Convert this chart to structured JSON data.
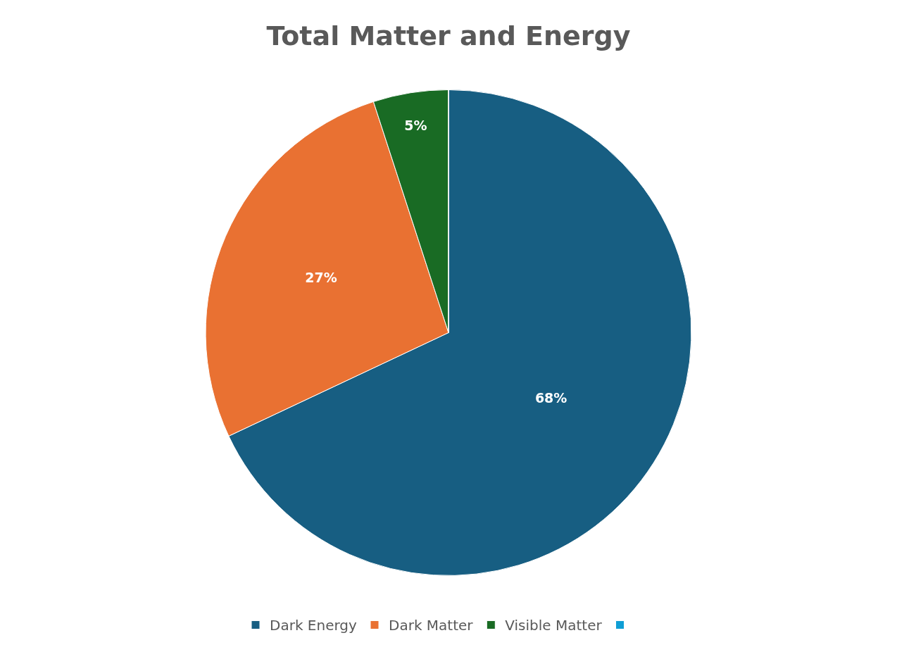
{
  "chart_data": {
    "type": "pie",
    "title": "Total Matter and Energy",
    "categories": [
      "Dark Energy",
      "Dark Matter",
      "Visible Matter",
      null
    ],
    "values": [
      68,
      27,
      5,
      0
    ],
    "colors": [
      "#175e82",
      "#e97132",
      "#196b24",
      "#0f9ed5"
    ],
    "value_labels": [
      "68%",
      "27%",
      "5%",
      null
    ],
    "legend": "bottom"
  }
}
